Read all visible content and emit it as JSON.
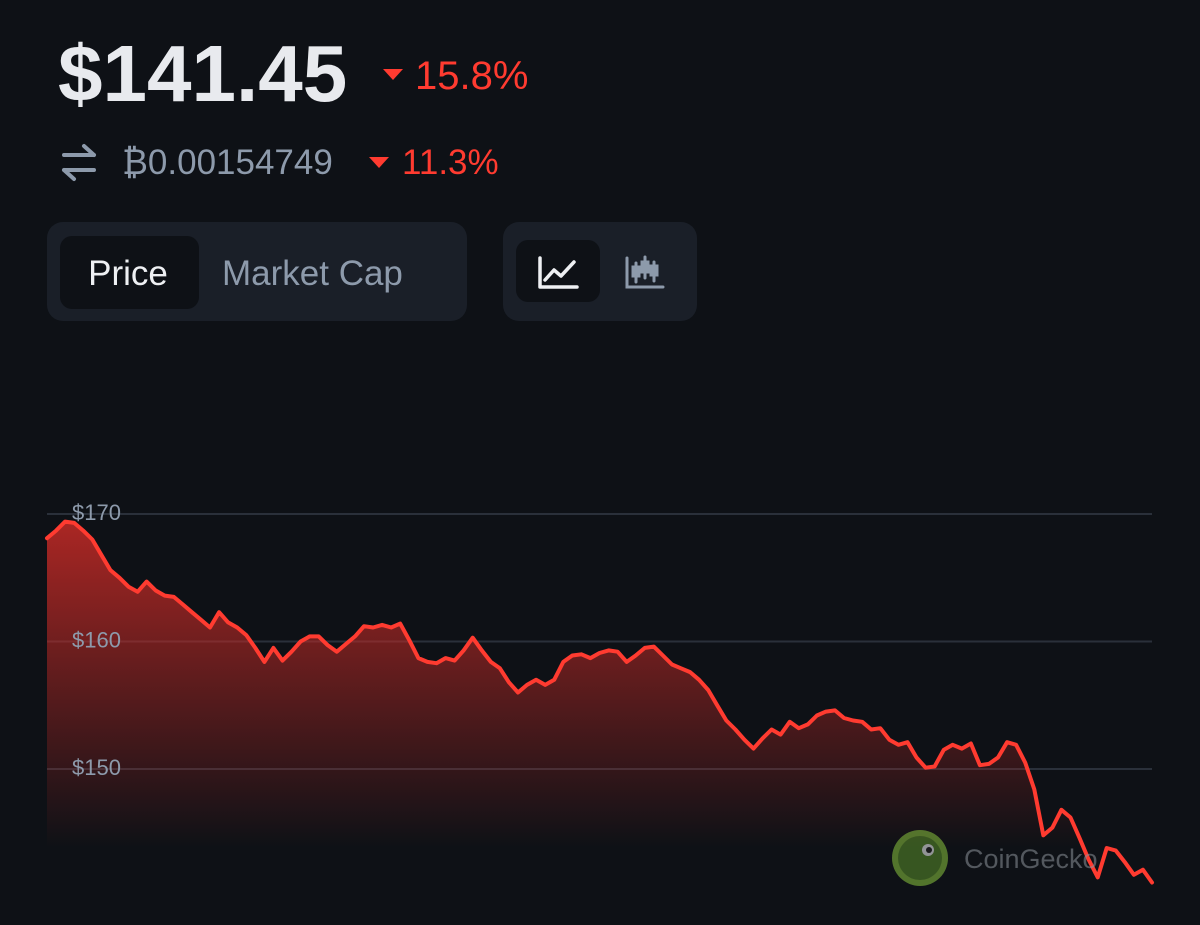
{
  "header": {
    "price": "$141.45",
    "price_change": "15.8%",
    "btc_price": "₿0.00154749",
    "btc_change": "11.3%"
  },
  "tabs": {
    "metric": [
      "Price",
      "Market Cap"
    ]
  },
  "watermark": "CoinGecko",
  "chart_data": {
    "type": "line",
    "color": "#ff3b30",
    "grid": true,
    "ylim": [
      141,
      172
    ],
    "yticks": [
      {
        "value": 170,
        "label": "$170"
      },
      {
        "value": 160,
        "label": "$160"
      },
      {
        "value": 150,
        "label": "$150"
      }
    ],
    "values": [
      168.1,
      168.7,
      169.4,
      169.3,
      168.7,
      168.0,
      166.8,
      165.6,
      165.0,
      164.3,
      163.9,
      164.7,
      164.0,
      163.6,
      163.5,
      162.9,
      162.3,
      161.7,
      161.1,
      162.3,
      161.5,
      161.1,
      160.5,
      159.5,
      158.4,
      159.5,
      158.5,
      159.2,
      160.0,
      160.4,
      160.4,
      159.7,
      159.2,
      159.8,
      160.4,
      161.2,
      161.1,
      161.3,
      161.1,
      161.4,
      160.1,
      158.7,
      158.4,
      158.3,
      158.7,
      158.5,
      159.3,
      160.3,
      159.3,
      158.4,
      157.9,
      156.8,
      156.0,
      156.6,
      157.0,
      156.6,
      157.0,
      158.4,
      158.9,
      159.0,
      158.7,
      159.1,
      159.3,
      159.2,
      158.4,
      158.9,
      159.5,
      159.6,
      158.9,
      158.2,
      157.9,
      157.6,
      157.0,
      156.2,
      155.0,
      153.8,
      153.1,
      152.3,
      151.6,
      152.4,
      153.1,
      152.7,
      153.7,
      153.2,
      153.5,
      154.2,
      154.5,
      154.6,
      154.0,
      153.8,
      153.7,
      153.1,
      153.2,
      152.3,
      151.9,
      152.1,
      150.9,
      150.1,
      150.2,
      151.5,
      151.9,
      151.6,
      152.0,
      150.3,
      150.4,
      150.9,
      152.1,
      151.9,
      150.5,
      148.4,
      144.8,
      145.4,
      146.8,
      146.2,
      144.6,
      142.9,
      141.5,
      143.8,
      143.6,
      142.7,
      141.7,
      142.1,
      141.1
    ]
  }
}
